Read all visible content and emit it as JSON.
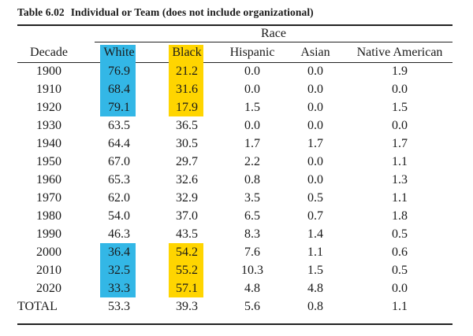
{
  "table": {
    "number": "Table 6.02",
    "title": "Individual or Team (does not include organizational)",
    "group_header": "Race",
    "columns": [
      "Decade",
      "White",
      "Black",
      "Hispanic",
      "Asian",
      "Native American"
    ],
    "rows": [
      {
        "decade": "1900",
        "white": "76.9",
        "black": "21.2",
        "hispanic": "0.0",
        "asian": "0.0",
        "native": "1.9",
        "highlight": true
      },
      {
        "decade": "1910",
        "white": "68.4",
        "black": "31.6",
        "hispanic": "0.0",
        "asian": "0.0",
        "native": "0.0",
        "highlight": true
      },
      {
        "decade": "1920",
        "white": "79.1",
        "black": "17.9",
        "hispanic": "1.5",
        "asian": "0.0",
        "native": "1.5",
        "highlight": true
      },
      {
        "decade": "1930",
        "white": "63.5",
        "black": "36.5",
        "hispanic": "0.0",
        "asian": "0.0",
        "native": "0.0",
        "highlight": false
      },
      {
        "decade": "1940",
        "white": "64.4",
        "black": "30.5",
        "hispanic": "1.7",
        "asian": "1.7",
        "native": "1.7",
        "highlight": false
      },
      {
        "decade": "1950",
        "white": "67.0",
        "black": "29.7",
        "hispanic": "2.2",
        "asian": "0.0",
        "native": "1.1",
        "highlight": false
      },
      {
        "decade": "1960",
        "white": "65.3",
        "black": "32.6",
        "hispanic": "0.8",
        "asian": "0.0",
        "native": "1.3",
        "highlight": false
      },
      {
        "decade": "1970",
        "white": "62.0",
        "black": "32.9",
        "hispanic": "3.5",
        "asian": "0.5",
        "native": "1.1",
        "highlight": false
      },
      {
        "decade": "1980",
        "white": "54.0",
        "black": "37.0",
        "hispanic": "6.5",
        "asian": "0.7",
        "native": "1.8",
        "highlight": false
      },
      {
        "decade": "1990",
        "white": "46.3",
        "black": "43.5",
        "hispanic": "8.3",
        "asian": "1.4",
        "native": "0.5",
        "highlight": false
      },
      {
        "decade": "2000",
        "white": "36.4",
        "black": "54.2",
        "hispanic": "7.6",
        "asian": "1.1",
        "native": "0.6",
        "highlight": true
      },
      {
        "decade": "2010",
        "white": "32.5",
        "black": "55.2",
        "hispanic": "10.3",
        "asian": "1.5",
        "native": "0.5",
        "highlight": true
      },
      {
        "decade": "2020",
        "white": "33.3",
        "black": "57.1",
        "hispanic": "4.8",
        "asian": "4.8",
        "native": "0.0",
        "highlight": true
      },
      {
        "decade": "TOTAL",
        "white": "53.3",
        "black": "39.3",
        "hispanic": "5.6",
        "asian": "0.8",
        "native": "1.1",
        "highlight": false
      }
    ]
  },
  "colors": {
    "white_highlight": "#33b7e6",
    "black_highlight": "#ffd500"
  }
}
